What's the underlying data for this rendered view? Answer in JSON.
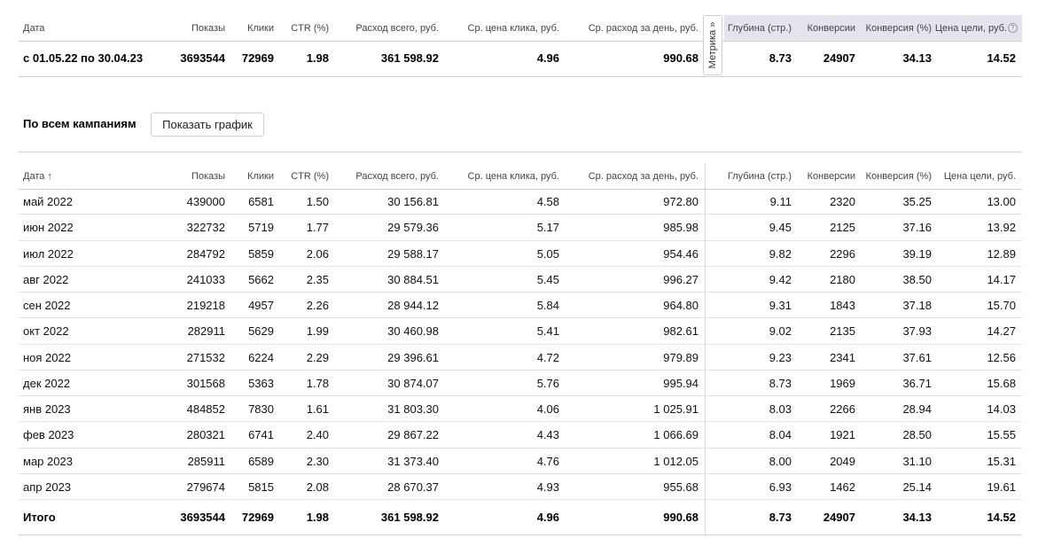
{
  "columns": [
    "Дата",
    "Показы",
    "Клики",
    "CTR (%)",
    "Расход всего, руб.",
    "Ср. цена клика, руб.",
    "Ср. расход за день, руб.",
    "Глубина (стр.)",
    "Конверсии",
    "Конверсия (%)",
    "Цена цели, руб."
  ],
  "metrika_label": "Метрика »",
  "summary": {
    "period": "с 01.05.22 по 30.04.23",
    "values": [
      "3693544",
      "72969",
      "1.98",
      "361 598.92",
      "4.96",
      "990.68",
      "8.73",
      "24907",
      "34.13",
      "14.52"
    ]
  },
  "section": {
    "title": "По всем кампаниям",
    "show_chart_button": "Показать график"
  },
  "table": {
    "date_header": "Дата ↑",
    "rows": [
      [
        "май 2022",
        "439000",
        "6581",
        "1.50",
        "30 156.81",
        "4.58",
        "972.80",
        "9.11",
        "2320",
        "35.25",
        "13.00"
      ],
      [
        "июн 2022",
        "322732",
        "5719",
        "1.77",
        "29 579.36",
        "5.17",
        "985.98",
        "9.45",
        "2125",
        "37.16",
        "13.92"
      ],
      [
        "июл 2022",
        "284792",
        "5859",
        "2.06",
        "29 588.17",
        "5.05",
        "954.46",
        "9.82",
        "2296",
        "39.19",
        "12.89"
      ],
      [
        "авг 2022",
        "241033",
        "5662",
        "2.35",
        "30 884.51",
        "5.45",
        "996.27",
        "9.42",
        "2180",
        "38.50",
        "14.17"
      ],
      [
        "сен 2022",
        "219218",
        "4957",
        "2.26",
        "28 944.12",
        "5.84",
        "964.80",
        "9.31",
        "1843",
        "37.18",
        "15.70"
      ],
      [
        "окт 2022",
        "282911",
        "5629",
        "1.99",
        "30 460.98",
        "5.41",
        "982.61",
        "9.02",
        "2135",
        "37.93",
        "14.27"
      ],
      [
        "ноя 2022",
        "271532",
        "6224",
        "2.29",
        "29 396.61",
        "4.72",
        "979.89",
        "9.23",
        "2341",
        "37.61",
        "12.56"
      ],
      [
        "дек 2022",
        "301568",
        "5363",
        "1.78",
        "30 874.07",
        "5.76",
        "995.94",
        "8.73",
        "1969",
        "36.71",
        "15.68"
      ],
      [
        "янв 2023",
        "484852",
        "7830",
        "1.61",
        "31 803.30",
        "4.06",
        "1 025.91",
        "8.03",
        "2266",
        "28.94",
        "14.03"
      ],
      [
        "фев 2023",
        "280321",
        "6741",
        "2.40",
        "29 867.22",
        "4.43",
        "1 066.69",
        "8.04",
        "1921",
        "28.50",
        "15.55"
      ],
      [
        "мар 2023",
        "285911",
        "6589",
        "2.30",
        "31 373.40",
        "4.76",
        "1 012.05",
        "8.00",
        "2049",
        "31.10",
        "15.31"
      ],
      [
        "апр 2023",
        "279674",
        "5815",
        "2.08",
        "28 670.37",
        "4.93",
        "955.68",
        "6.93",
        "1462",
        "25.14",
        "19.61"
      ]
    ],
    "total": [
      "Итого",
      "3693544",
      "72969",
      "1.98",
      "361 598.92",
      "4.96",
      "990.68",
      "8.73",
      "24907",
      "34.13",
      "14.52"
    ]
  }
}
